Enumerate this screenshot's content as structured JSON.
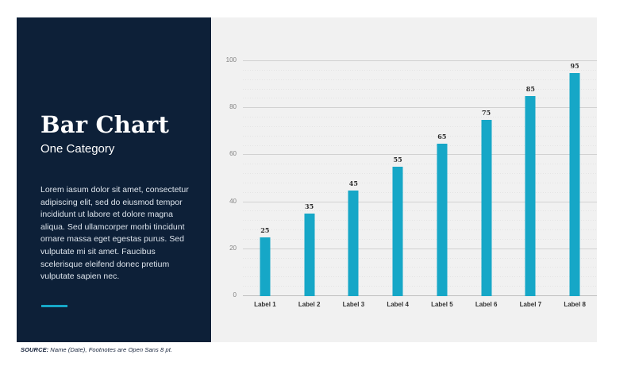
{
  "sidebar": {
    "title": "Bar Chart",
    "subtitle": "One Category",
    "body": "Lorem iasum dolor sit amet, consectetur adipiscing elit, sed do eiusmod tempor incididunt ut labore et dolore magna aliqua. Sed ullamcorper morbi tincidunt ornare massa eget egestas purus. Sed vulputate mi sit amet. Faucibus scelerisque eleifend donec pretium vulputate sapien nec.",
    "background_color": "#0d2038",
    "accent_color": "#16a7c7"
  },
  "footer": {
    "source_label": "SOURCE:",
    "source_text": "Name (Date), Footnotes are Open Sans 8 pt."
  },
  "chart_data": {
    "type": "bar",
    "title": "",
    "xlabel": "",
    "ylabel": "",
    "categories": [
      "Label 1",
      "Label 2",
      "Label 3",
      "Label 4",
      "Label 5",
      "Label 6",
      "Label 7",
      "Label 8"
    ],
    "values": [
      25,
      35,
      45,
      55,
      65,
      75,
      85,
      95
    ],
    "ylim": [
      0,
      100
    ],
    "y_ticks": [
      0,
      20,
      40,
      60,
      80,
      100
    ],
    "minor_grid_step": 4,
    "grid": "major-solid-minor-dotted",
    "legend": "none",
    "value_labels_shown": true,
    "bar_color": "#16a7c7",
    "panel_background": "#f1f1f1"
  }
}
